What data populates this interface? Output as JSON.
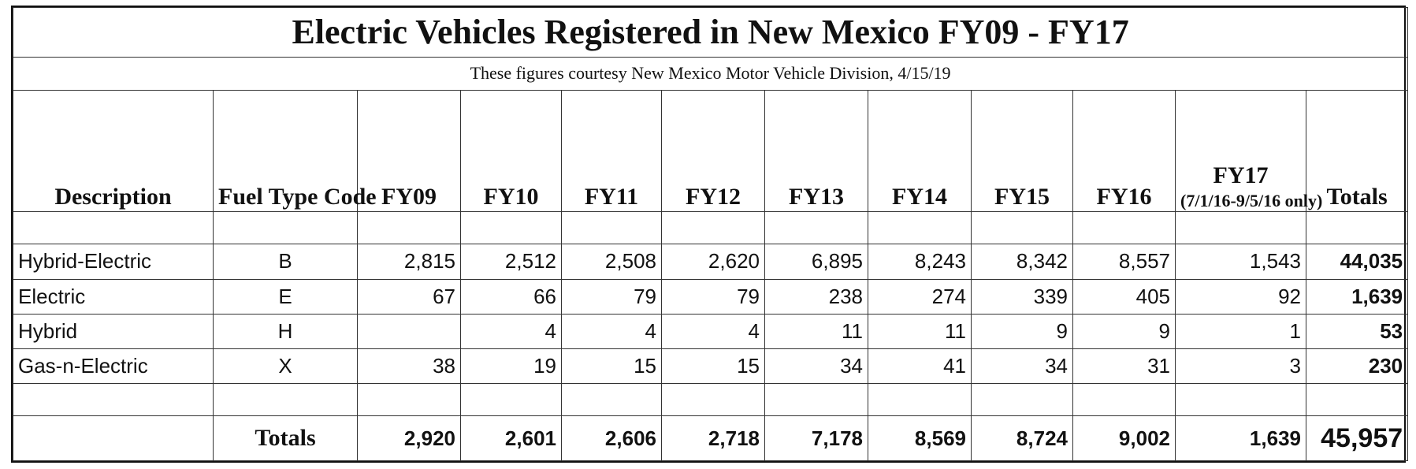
{
  "document": {
    "title": "Electric Vehicles Registered in New Mexico FY09 - FY17",
    "subtitle": "These figures courtesy New Mexico Motor Vehicle Division, 4/15/19"
  },
  "table": {
    "headers": {
      "description": "Description",
      "fuel_type_code": "Fuel Type Code",
      "fy09": "FY09",
      "fy10": "FY10",
      "fy11": "FY11",
      "fy12": "FY12",
      "fy13": "FY13",
      "fy14": "FY14",
      "fy15": "FY15",
      "fy16": "FY16",
      "fy17": "FY17",
      "fy17_note": "(7/1/16-9/5/16 only)",
      "totals": "Totals"
    },
    "rows": [
      {
        "description": "Hybrid-Electric",
        "code": "B",
        "values": [
          "2,815",
          "2,512",
          "2,508",
          "2,620",
          "6,895",
          "8,243",
          "8,342",
          "8,557",
          "1,543"
        ],
        "total": "44,035"
      },
      {
        "description": "Electric",
        "code": "E",
        "values": [
          "67",
          "66",
          "79",
          "79",
          "238",
          "274",
          "339",
          "405",
          "92"
        ],
        "total": "1,639"
      },
      {
        "description": "Hybrid",
        "code": "H",
        "values": [
          "",
          "4",
          "4",
          "4",
          "11",
          "11",
          "9",
          "9",
          "1"
        ],
        "total": "53"
      },
      {
        "description": "Gas-n-Electric",
        "code": "X",
        "values": [
          "38",
          "19",
          "15",
          "15",
          "34",
          "41",
          "34",
          "31",
          "3"
        ],
        "total": "230"
      }
    ],
    "totals_row": {
      "label": "Totals",
      "values": [
        "2,920",
        "2,601",
        "2,606",
        "2,718",
        "7,178",
        "8,569",
        "8,724",
        "9,002",
        "1,639"
      ],
      "grand_total": "45,957"
    }
  }
}
